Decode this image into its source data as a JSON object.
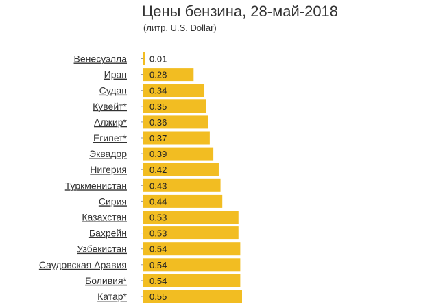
{
  "page": {
    "title": "Цены бензина, 28-май-2018",
    "subtitle": "(литр, U.S. Dollar)"
  },
  "chart_data": {
    "type": "bar",
    "orientation": "horizontal",
    "title": "Цены бензина, 28-май-2018",
    "subtitle": "(литр, U.S. Dollar)",
    "categories": [
      "Венесуэлла",
      "Иран",
      "Судан",
      "Кувейт*",
      "Алжир*",
      "Египет*",
      "Эквадор",
      "Нигерия",
      "Туркменистан",
      "Сирия",
      "Казахстан",
      "Бахрейн",
      "Узбекистан",
      "Саудовская Аравия",
      "Боливия*",
      "Катар*"
    ],
    "values": [
      0.01,
      0.28,
      0.34,
      0.35,
      0.36,
      0.37,
      0.39,
      0.42,
      0.43,
      0.44,
      0.53,
      0.53,
      0.54,
      0.54,
      0.54,
      0.55
    ],
    "value_labels": [
      "0.01",
      "0.28",
      "0.34",
      "0.35",
      "0.36",
      "0.37",
      "0.39",
      "0.42",
      "0.43",
      "0.44",
      "0.53",
      "0.53",
      "0.54",
      "0.54",
      "0.54",
      "0.55"
    ],
    "bar_color": "#F2BD22",
    "xlim": [
      0,
      0.55
    ],
    "grid": false,
    "legend": "none"
  }
}
